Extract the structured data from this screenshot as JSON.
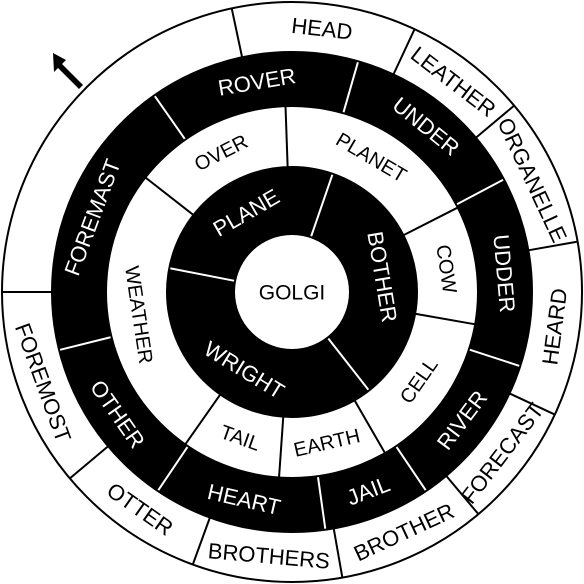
{
  "colors": {
    "background": "#ffffff",
    "ink": "#000000"
  },
  "pointer": {
    "icon": "arrow-pointer-icon"
  },
  "center": {
    "word": "GOLGI"
  },
  "rings": [
    {
      "id": "outer",
      "words": [
        "HEAD",
        "LEATHER",
        "ORGANELLE",
        "HEARD",
        "FORECAST",
        "BROTHER",
        "BROTHERS",
        "OTTER",
        "FOREMOST"
      ]
    },
    {
      "id": "second",
      "words": [
        "ROVER",
        "UNDER",
        "UDDER",
        "RIVER",
        "JAIL",
        "HEART",
        "OTHER",
        "FOREMAST"
      ]
    },
    {
      "id": "third",
      "words": [
        "PLANET",
        "COW",
        "CELL",
        "EARTH",
        "TAIL",
        "WEATHER",
        "OVER"
      ]
    },
    {
      "id": "inner",
      "words": [
        "PLANE",
        "BOTHER",
        "WRIGHT"
      ]
    }
  ]
}
